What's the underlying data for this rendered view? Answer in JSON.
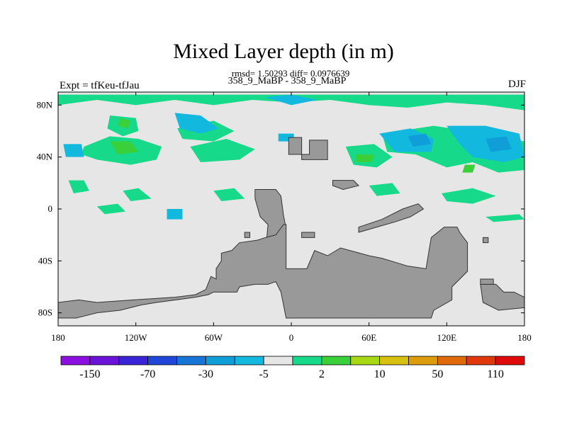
{
  "chart_data": {
    "type": "heatmap",
    "title": "Mixed Layer depth (in m)",
    "stats": "rmsd= 1.50293 diff= 0.0976639",
    "subtitle": "358_9_MaBP - 358_9_MaBP",
    "left_label": "Expt = tfKeu-tfJau",
    "right_label": "DJF",
    "x_range": [
      -180,
      180
    ],
    "y_range": [
      -90,
      90
    ],
    "x_ticks": [
      {
        "value": -180,
        "label": "180"
      },
      {
        "value": -120,
        "label": "120W"
      },
      {
        "value": -60,
        "label": "60W"
      },
      {
        "value": 0,
        "label": "0"
      },
      {
        "value": 60,
        "label": "60E"
      },
      {
        "value": 120,
        "label": "120E"
      },
      {
        "value": 180,
        "label": "180"
      }
    ],
    "y_ticks": [
      {
        "value": 80,
        "label": "80N"
      },
      {
        "value": 40,
        "label": "40N"
      },
      {
        "value": 0,
        "label": "0"
      },
      {
        "value": -40,
        "label": "40S"
      },
      {
        "value": -80,
        "label": "80S"
      }
    ],
    "colorbar": {
      "colors": [
        "#8a0fe0",
        "#6a12d8",
        "#3b24d8",
        "#1f46d8",
        "#1675d6",
        "#109ed8",
        "#12b8dd",
        "#e6e6e6",
        "#16d98a",
        "#3ad03a",
        "#a8d814",
        "#d8c010",
        "#dc9c0c",
        "#e06a0a",
        "#e0380a",
        "#e00a0a"
      ],
      "labels": [
        {
          "after_box": 1,
          "label": "-150"
        },
        {
          "after_box": 3,
          "label": "-70"
        },
        {
          "after_box": 5,
          "label": "-30"
        },
        {
          "after_box": 7,
          "label": "-5"
        },
        {
          "after_box": 9,
          "label": "2"
        },
        {
          "after_box": 11,
          "label": "10"
        },
        {
          "after_box": 13,
          "label": "50"
        },
        {
          "after_box": 15,
          "label": "110"
        }
      ]
    },
    "background_color": "#e6e6e6",
    "land_color": "#999999",
    "land": [
      [
        [
          -2,
          55
        ],
        [
          8,
          55
        ],
        [
          8,
          38
        ],
        [
          28,
          38
        ],
        [
          28,
          53
        ],
        [
          14,
          53
        ],
        [
          14,
          42
        ],
        [
          -2,
          42
        ]
      ],
      [
        [
          32,
          22
        ],
        [
          48,
          22
        ],
        [
          52,
          18
        ],
        [
          40,
          15
        ],
        [
          32,
          18
        ]
      ],
      [
        [
          -28,
          15
        ],
        [
          -12,
          15
        ],
        [
          -8,
          10
        ],
        [
          -6,
          -5
        ],
        [
          -4,
          -15
        ],
        [
          -6,
          -28
        ],
        [
          -22,
          -28
        ],
        [
          -26,
          -32
        ],
        [
          -36,
          -38
        ],
        [
          -46,
          -40
        ],
        [
          -50,
          -48
        ],
        [
          -44,
          -52
        ],
        [
          -30,
          -55
        ],
        [
          -22,
          -58
        ],
        [
          -18,
          -12
        ],
        [
          -24,
          -6
        ],
        [
          -28,
          8
        ]
      ],
      [
        [
          -4,
          -12
        ],
        [
          -4,
          -46
        ],
        [
          12,
          -46
        ],
        [
          18,
          -32
        ],
        [
          28,
          -36
        ],
        [
          38,
          -30
        ],
        [
          60,
          -36
        ],
        [
          70,
          -38
        ],
        [
          90,
          -44
        ],
        [
          104,
          -46
        ],
        [
          108,
          -22
        ],
        [
          118,
          -14
        ],
        [
          128,
          -14
        ],
        [
          130,
          -18
        ],
        [
          136,
          -26
        ],
        [
          136,
          -48
        ],
        [
          124,
          -60
        ],
        [
          124,
          -70
        ],
        [
          110,
          -78
        ],
        [
          108,
          -84
        ],
        [
          -4,
          -84
        ],
        [
          -8,
          -64
        ],
        [
          -12,
          -56
        ],
        [
          -18,
          -58
        ],
        [
          -28,
          -58
        ],
        [
          -40,
          -60
        ],
        [
          -42,
          -64
        ],
        [
          -60,
          -64
        ],
        [
          -64,
          -66
        ],
        [
          -74,
          -68
        ],
        [
          -104,
          -72
        ],
        [
          -116,
          -74
        ],
        [
          -132,
          -78
        ],
        [
          -150,
          -80
        ],
        [
          -166,
          -84
        ],
        [
          -180,
          -84
        ],
        [
          -180,
          -72
        ],
        [
          -164,
          -70
        ],
        [
          -150,
          -72
        ],
        [
          -122,
          -70
        ],
        [
          -90,
          -68
        ],
        [
          -74,
          -66
        ],
        [
          -66,
          -62
        ],
        [
          -62,
          -52
        ],
        [
          -58,
          -54
        ],
        [
          -58,
          -46
        ],
        [
          -54,
          -40
        ],
        [
          -54,
          -34
        ],
        [
          -46,
          -32
        ],
        [
          -40,
          -26
        ],
        [
          -26,
          -24
        ],
        [
          -20,
          -22
        ],
        [
          -12,
          -20
        ],
        [
          -6,
          -12
        ]
      ],
      [
        [
          52,
          -14
        ],
        [
          70,
          -8
        ],
        [
          86,
          0
        ],
        [
          98,
          4
        ],
        [
          102,
          0
        ],
        [
          92,
          -6
        ],
        [
          80,
          -10
        ],
        [
          66,
          -14
        ],
        [
          52,
          -18
        ]
      ],
      [
        [
          8,
          -18
        ],
        [
          18,
          -18
        ],
        [
          18,
          -22
        ],
        [
          8,
          -22
        ]
      ],
      [
        [
          -36,
          -18
        ],
        [
          -32,
          -18
        ],
        [
          -32,
          -22
        ],
        [
          -36,
          -22
        ]
      ],
      [
        [
          146,
          -58
        ],
        [
          158,
          -58
        ],
        [
          164,
          -64
        ],
        [
          172,
          -64
        ],
        [
          180,
          -68
        ],
        [
          180,
          -76
        ],
        [
          160,
          -78
        ],
        [
          148,
          -72
        ]
      ],
      [
        [
          146,
          -54
        ],
        [
          156,
          -54
        ],
        [
          156,
          -58
        ],
        [
          146,
          -58
        ]
      ],
      [
        [
          148,
          -22
        ],
        [
          152,
          -22
        ],
        [
          152,
          -26
        ],
        [
          148,
          -26
        ]
      ]
    ],
    "anomaly_patches": [
      {
        "color": "#16d98a",
        "points": [
          [
            -180,
            88
          ],
          [
            180,
            88
          ],
          [
            180,
            76
          ],
          [
            150,
            80
          ],
          [
            120,
            82
          ],
          [
            90,
            78
          ],
          [
            60,
            80
          ],
          [
            30,
            84
          ],
          [
            0,
            82
          ],
          [
            -30,
            84
          ],
          [
            -60,
            80
          ],
          [
            -90,
            84
          ],
          [
            -120,
            80
          ],
          [
            -150,
            84
          ],
          [
            -180,
            80
          ]
        ]
      },
      {
        "color": "#16d98a",
        "points": [
          [
            -140,
            72
          ],
          [
            -120,
            70
          ],
          [
            -118,
            60
          ],
          [
            -130,
            56
          ],
          [
            -142,
            62
          ]
        ]
      },
      {
        "color": "#16d98a",
        "points": [
          [
            -160,
            48
          ],
          [
            -140,
            56
          ],
          [
            -118,
            54
          ],
          [
            -100,
            48
          ],
          [
            -104,
            38
          ],
          [
            -124,
            34
          ],
          [
            -150,
            38
          ],
          [
            -162,
            42
          ]
        ]
      },
      {
        "color": "#16d98a",
        "points": [
          [
            -88,
            62
          ],
          [
            -60,
            68
          ],
          [
            -44,
            60
          ],
          [
            -60,
            52
          ],
          [
            -84,
            54
          ]
        ]
      },
      {
        "color": "#16d98a",
        "points": [
          [
            -78,
            48
          ],
          [
            -50,
            54
          ],
          [
            -28,
            46
          ],
          [
            -40,
            38
          ],
          [
            -70,
            36
          ]
        ]
      },
      {
        "color": "#16d98a",
        "points": [
          [
            70,
            58
          ],
          [
            110,
            64
          ],
          [
            150,
            58
          ],
          [
            180,
            52
          ],
          [
            180,
            30
          ],
          [
            160,
            28
          ],
          [
            140,
            36
          ],
          [
            120,
            32
          ],
          [
            96,
            42
          ],
          [
            74,
            44
          ]
        ]
      },
      {
        "color": "#16d98a",
        "points": [
          [
            42,
            48
          ],
          [
            64,
            50
          ],
          [
            78,
            40
          ],
          [
            66,
            32
          ],
          [
            48,
            34
          ]
        ]
      },
      {
        "color": "#16d98a",
        "points": [
          [
            -172,
            22
          ],
          [
            -160,
            22
          ],
          [
            -156,
            14
          ],
          [
            -168,
            12
          ]
        ]
      },
      {
        "color": "#16d98a",
        "points": [
          [
            -130,
            14
          ],
          [
            -118,
            16
          ],
          [
            -108,
            8
          ],
          [
            -124,
            6
          ]
        ]
      },
      {
        "color": "#16d98a",
        "points": [
          [
            -60,
            14
          ],
          [
            -44,
            16
          ],
          [
            -36,
            8
          ],
          [
            -54,
            6
          ]
        ]
      },
      {
        "color": "#16d98a",
        "points": [
          [
            116,
            12
          ],
          [
            140,
            16
          ],
          [
            158,
            10
          ],
          [
            140,
            4
          ],
          [
            120,
            6
          ]
        ]
      },
      {
        "color": "#16d98a",
        "points": [
          [
            60,
            18
          ],
          [
            78,
            20
          ],
          [
            84,
            12
          ],
          [
            66,
            10
          ]
        ]
      },
      {
        "color": "#16d98a",
        "points": [
          [
            -150,
            2
          ],
          [
            -134,
            4
          ],
          [
            -128,
            -2
          ],
          [
            -144,
            -4
          ]
        ]
      },
      {
        "color": "#16d98a",
        "points": [
          [
            150,
            -6
          ],
          [
            176,
            -4
          ],
          [
            180,
            -8
          ],
          [
            156,
            -10
          ]
        ]
      },
      {
        "color": "#3ad03a",
        "points": [
          [
            -140,
            52
          ],
          [
            -124,
            52
          ],
          [
            -118,
            44
          ],
          [
            -134,
            42
          ]
        ]
      },
      {
        "color": "#3ad03a",
        "points": [
          [
            -132,
            70
          ],
          [
            -124,
            68
          ],
          [
            -126,
            62
          ],
          [
            -134,
            64
          ]
        ]
      },
      {
        "color": "#3ad03a",
        "points": [
          [
            50,
            42
          ],
          [
            64,
            42
          ],
          [
            62,
            36
          ],
          [
            50,
            36
          ]
        ]
      },
      {
        "color": "#3ad03a",
        "points": [
          [
            134,
            34
          ],
          [
            142,
            34
          ],
          [
            140,
            28
          ],
          [
            132,
            28
          ]
        ]
      },
      {
        "color": "#12b8dd",
        "points": [
          [
            -90,
            74
          ],
          [
            -70,
            72
          ],
          [
            -56,
            62
          ],
          [
            -70,
            58
          ],
          [
            -86,
            62
          ]
        ]
      },
      {
        "color": "#12b8dd",
        "points": [
          [
            -176,
            50
          ],
          [
            -162,
            50
          ],
          [
            -160,
            40
          ],
          [
            -174,
            40
          ]
        ]
      },
      {
        "color": "#12b8dd",
        "points": [
          [
            -20,
            86
          ],
          [
            0,
            88
          ],
          [
            20,
            84
          ],
          [
            0,
            80
          ]
        ]
      },
      {
        "color": "#12b8dd",
        "points": [
          [
            68,
            58
          ],
          [
            92,
            62
          ],
          [
            110,
            54
          ],
          [
            108,
            44
          ],
          [
            80,
            44
          ]
        ]
      },
      {
        "color": "#12b8dd",
        "points": [
          [
            120,
            64
          ],
          [
            150,
            64
          ],
          [
            176,
            58
          ],
          [
            180,
            40
          ],
          [
            164,
            36
          ],
          [
            140,
            40
          ],
          [
            130,
            50
          ]
        ]
      },
      {
        "color": "#12b8dd",
        "points": [
          [
            -10,
            58
          ],
          [
            2,
            58
          ],
          [
            2,
            52
          ],
          [
            -10,
            52
          ]
        ]
      },
      {
        "color": "#12b8dd",
        "points": [
          [
            -96,
            0
          ],
          [
            -84,
            0
          ],
          [
            -84,
            -8
          ],
          [
            -96,
            -8
          ]
        ]
      },
      {
        "color": "#109ed8",
        "points": [
          [
            90,
            56
          ],
          [
            104,
            58
          ],
          [
            108,
            50
          ],
          [
            94,
            48
          ]
        ]
      },
      {
        "color": "#109ed8",
        "points": [
          [
            150,
            54
          ],
          [
            166,
            56
          ],
          [
            170,
            46
          ],
          [
            154,
            44
          ]
        ]
      }
    ]
  }
}
